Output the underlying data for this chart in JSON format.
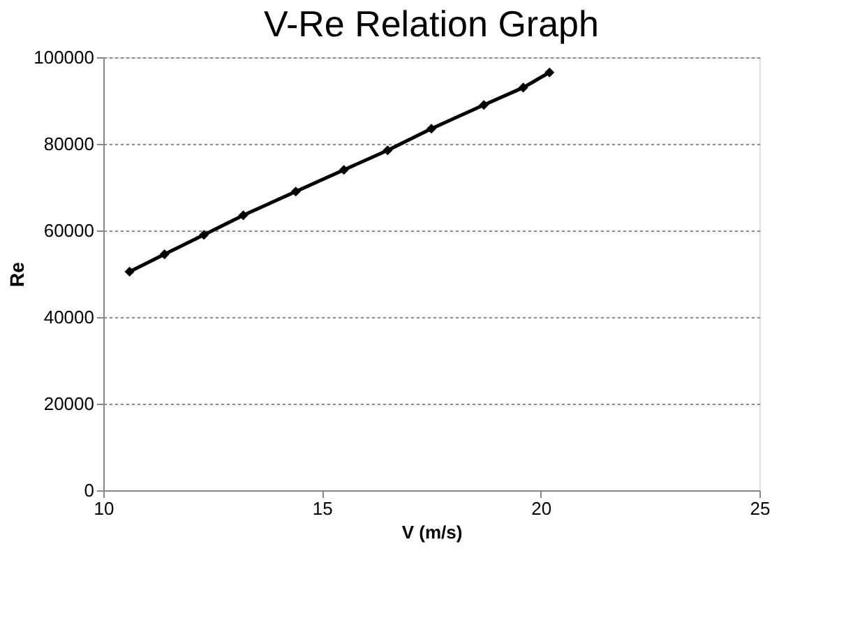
{
  "chart_data": {
    "type": "line",
    "title": "V-Re Relation Graph",
    "xlabel": "V (m/s)",
    "ylabel": "Re",
    "x": [
      10.6,
      11.4,
      12.3,
      13.2,
      14.4,
      15.5,
      16.5,
      17.5,
      18.7,
      19.6,
      20.2
    ],
    "series": [
      {
        "color": "#000000",
        "values": [
          50500,
          54500,
          59000,
          63500,
          69000,
          74000,
          78500,
          83500,
          89000,
          93000,
          96500
        ]
      }
    ],
    "xlim": [
      10,
      25
    ],
    "xticks": [
      10,
      15,
      20,
      25
    ],
    "ylim": [
      0,
      100000
    ],
    "yticks": [
      0,
      20000,
      40000,
      60000,
      80000,
      100000
    ],
    "grid": "y",
    "marker": "diamond",
    "line_style": "solid"
  }
}
